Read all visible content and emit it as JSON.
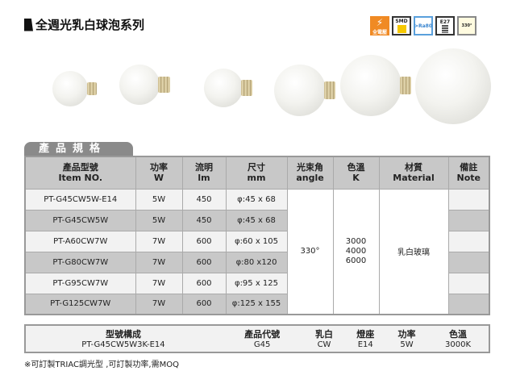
{
  "title": "全週光乳白球泡系列",
  "badges": [
    {
      "icon": "voltage-icon",
      "label": "全電壓"
    },
    {
      "icon": "smd-icon",
      "label": "SMD"
    },
    {
      "icon": "ra-icon",
      "label": ">Ra80"
    },
    {
      "icon": "e27-base-icon",
      "label": "E27"
    },
    {
      "icon": "beam-angle-icon",
      "label": "330°"
    }
  ],
  "colors": {
    "header": "#c8c8c8",
    "row_light": "#f2f2f2",
    "row_dark": "#c8c8c8",
    "tab": "#8a8a8a",
    "badge_orange": "#f08a24"
  },
  "section_tab": "產品規格",
  "spec": {
    "headers": [
      [
        "產品型號",
        "Item NO."
      ],
      [
        "功率",
        "W"
      ],
      [
        "流明",
        "lm"
      ],
      [
        "尺寸",
        "mm"
      ],
      [
        "光束角",
        "angle"
      ],
      [
        "色溫",
        "K"
      ],
      [
        "材質",
        "Material"
      ],
      [
        "備註",
        "Note"
      ]
    ],
    "rows": [
      [
        "PT-G45CW5W-E14",
        "5W",
        "450",
        "φ:45 x 68"
      ],
      [
        "PT-G45CW5W",
        "5W",
        "450",
        "φ:45 x 68"
      ],
      [
        "PT-A60CW7W",
        "7W",
        "600",
        "φ:60 x 105"
      ],
      [
        "PT-G80CW7W",
        "7W",
        "600",
        "φ:80 x120"
      ],
      [
        "PT-G95CW7W",
        "7W",
        "600",
        "φ:95 x 125"
      ],
      [
        "PT-G125CW7W",
        "7W",
        "600",
        "φ:125 x 155"
      ]
    ],
    "angle": "330°",
    "cct": [
      "3000",
      "4000",
      "6000"
    ],
    "material": "乳白玻璃"
  },
  "composition": {
    "headers": [
      "型號構成",
      "產品代號",
      "乳白",
      "燈座",
      "功率",
      "色溫"
    ],
    "values": [
      "PT-G45CW5W3K-E14",
      "G45",
      "CW",
      "E14",
      "5W",
      "3000K"
    ]
  },
  "footnote": "※可訂製TRIAC調光型 ,可訂製功率,需MOQ"
}
